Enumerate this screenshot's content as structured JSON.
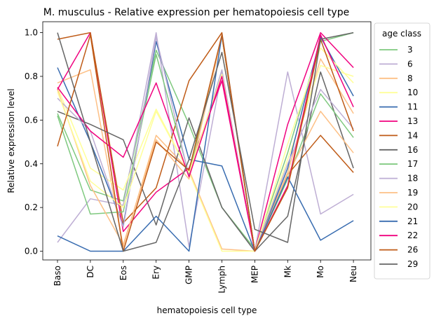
{
  "chart_data": {
    "type": "line",
    "title": "M. musculus - Relative expression per hematopoiesis cell type",
    "xlabel": "hematopoiesis cell type",
    "ylabel": "Relative expression level",
    "ylim": [
      -0.04,
      1.05
    ],
    "yticks": [
      "0.0",
      "0.2",
      "0.4",
      "0.6",
      "0.8",
      "1.0"
    ],
    "categories": [
      "Baso",
      "DC",
      "Eos",
      "Ery",
      "GMP",
      "Lymph",
      "MEP",
      "Mk",
      "Mo",
      "Neu"
    ],
    "legend_title": "age class",
    "legend_position": "outside-right",
    "grid": false,
    "series": [
      {
        "name": "3",
        "color": "#7fc97f",
        "values": [
          0.63,
          0.28,
          0.23,
          0.92,
          0.58,
          0.2,
          0.01,
          0.45,
          0.96,
          1.0
        ]
      },
      {
        "name": "6",
        "color": "#beaed4",
        "values": [
          0.04,
          0.24,
          0.21,
          1.0,
          0.02,
          0.82,
          0.0,
          0.82,
          0.17,
          0.26
        ]
      },
      {
        "name": "8",
        "color": "#fdc086",
        "values": [
          0.77,
          0.83,
          0.02,
          0.53,
          0.37,
          0.01,
          0.0,
          0.36,
          0.88,
          0.63
        ]
      },
      {
        "name": "10",
        "color": "#ffff99",
        "values": [
          0.75,
          0.38,
          0.28,
          0.65,
          0.36,
          0.0,
          0.0,
          0.42,
          0.85,
          0.8
        ]
      },
      {
        "name": "11",
        "color": "#386cb0",
        "values": [
          0.84,
          0.5,
          0.12,
          0.96,
          0.42,
          0.39,
          0.0,
          0.38,
          0.98,
          0.71
        ]
      },
      {
        "name": "13",
        "color": "#f0027f",
        "values": [
          0.74,
          1.0,
          0.09,
          0.27,
          0.38,
          0.78,
          0.0,
          0.58,
          1.0,
          0.84
        ]
      },
      {
        "name": "14",
        "color": "#bf5b17",
        "values": [
          0.97,
          1.0,
          0.13,
          0.29,
          0.78,
          1.0,
          0.0,
          0.35,
          0.53,
          0.36
        ]
      },
      {
        "name": "16",
        "color": "#666666",
        "values": [
          0.64,
          0.58,
          0.51,
          0.12,
          0.61,
          0.2,
          0.0,
          0.16,
          0.82,
          0.38
        ]
      },
      {
        "name": "17",
        "color": "#7fc97f",
        "values": [
          0.62,
          0.17,
          0.18,
          0.9,
          0.35,
          0.98,
          0.0,
          0.33,
          0.72,
          0.52
        ]
      },
      {
        "name": "18",
        "color": "#beaed4",
        "values": [
          0.7,
          0.55,
          0.11,
          0.98,
          0.34,
          0.83,
          0.0,
          0.4,
          0.74,
          0.56
        ]
      },
      {
        "name": "19",
        "color": "#fdc086",
        "values": [
          0.74,
          0.3,
          0.03,
          0.51,
          0.33,
          0.98,
          0.0,
          0.35,
          0.64,
          0.45
        ]
      },
      {
        "name": "20",
        "color": "#ffff99",
        "values": [
          0.73,
          0.32,
          0.2,
          0.64,
          0.36,
          0.81,
          0.0,
          0.49,
          0.93,
          0.77
        ]
      },
      {
        "name": "21",
        "color": "#386cb0",
        "values": [
          0.07,
          0.0,
          0.0,
          0.16,
          0.0,
          0.99,
          0.0,
          0.34,
          0.05,
          0.14
        ]
      },
      {
        "name": "22",
        "color": "#f0027f",
        "values": [
          0.75,
          0.55,
          0.43,
          0.77,
          0.34,
          0.8,
          0.0,
          0.3,
          0.99,
          0.66
        ]
      },
      {
        "name": "26",
        "color": "#bf5b17",
        "values": [
          0.48,
          0.99,
          0.0,
          0.5,
          0.37,
          0.99,
          0.0,
          0.29,
          0.97,
          0.55
        ]
      },
      {
        "name": "29",
        "color": "#666666",
        "values": [
          1.0,
          0.5,
          0.0,
          0.04,
          0.42,
          0.91,
          0.1,
          0.04,
          0.97,
          1.0
        ]
      }
    ]
  }
}
